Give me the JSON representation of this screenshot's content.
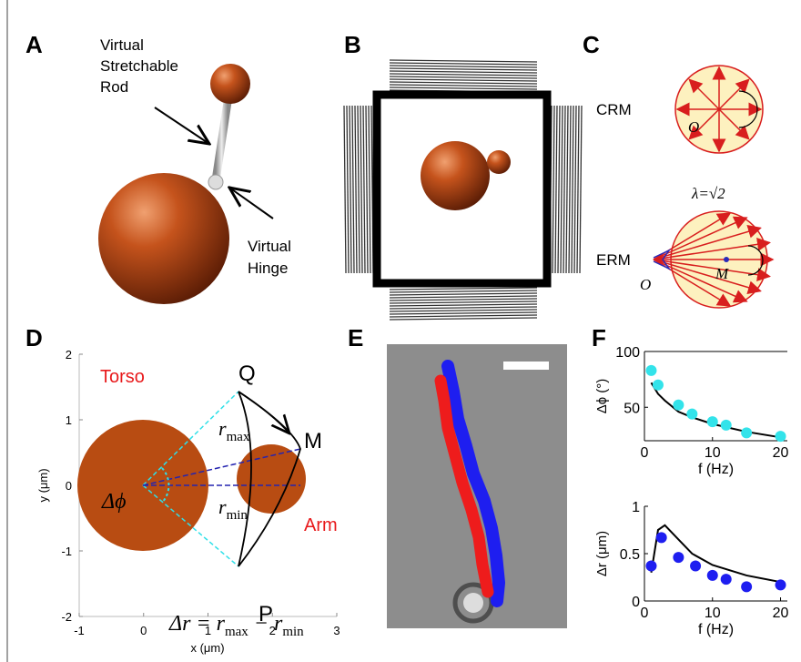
{
  "labels": {
    "a": "A",
    "b": "B",
    "c": "C",
    "d": "D",
    "e": "E",
    "f": "F"
  },
  "panel_a": {
    "rod_label": [
      "Virtual",
      "Stretchable",
      "Rod"
    ],
    "hinge_label": [
      "Virtual",
      "Hinge"
    ]
  },
  "panel_c": {
    "crm_label": "CRM",
    "erm_label": "ERM",
    "crm_origin": "O",
    "erm_origin": "O",
    "erm_center": "M",
    "lambda": "λ=√2"
  },
  "panel_d": {
    "torso": "Torso",
    "arm": "Arm",
    "q": "Q",
    "m": "M",
    "p": "P",
    "rmax": {
      "r": "r",
      "sub": "max"
    },
    "rmin": {
      "r": "r",
      "sub": "min"
    },
    "dphi": "Δϕ",
    "equation": {
      "lhs": "Δr = ",
      "r1": "r",
      "sub1": "max",
      "minus": " − ",
      "r2": "r",
      "sub2": "min"
    },
    "xlabel": "x (μm)",
    "ylabel": "y (μm)",
    "xlim": [
      -1,
      3
    ],
    "xticks": [
      -1,
      0,
      1,
      2,
      3
    ],
    "ylim": [
      -2,
      2
    ],
    "yticks": [
      -2,
      -1,
      0,
      1,
      2
    ]
  },
  "panel_f": {
    "top": {
      "type": "scatter",
      "ylabel": "Δϕ (°)",
      "xlabel": "f (Hz)",
      "xlim": [
        0,
        21
      ],
      "xticks": [
        0,
        10,
        20
      ],
      "ylim": [
        20,
        100
      ],
      "yticks": [
        50,
        100
      ],
      "series": [
        {
          "type": "line",
          "color": "#000000",
          "x": [
            1,
            2,
            3,
            5,
            7,
            10,
            15,
            20
          ],
          "values": [
            72,
            62,
            56,
            46,
            41,
            35,
            28,
            23
          ]
        },
        {
          "type": "scatter",
          "color": "#33e3ea",
          "x": [
            1,
            2,
            5,
            7,
            10,
            12,
            15,
            20
          ],
          "values": [
            83,
            70,
            52,
            44,
            37,
            34,
            27,
            24
          ]
        }
      ]
    },
    "bottom": {
      "type": "scatter",
      "ylabel": "Δr (μm)",
      "xlabel": "f (Hz)",
      "xlim": [
        0,
        21
      ],
      "xticks": [
        0,
        10,
        20
      ],
      "ylim": [
        0,
        1
      ],
      "yticks": [
        0,
        0.5,
        1
      ],
      "series": [
        {
          "type": "line",
          "color": "#000000",
          "x": [
            1,
            2,
            3,
            5,
            7,
            10,
            15,
            20
          ],
          "values": [
            0.3,
            0.75,
            0.8,
            0.65,
            0.5,
            0.38,
            0.27,
            0.2
          ]
        },
        {
          "type": "scatter",
          "color": "#1e1ef0",
          "x": [
            1,
            2.5,
            5,
            7.5,
            10,
            12,
            15,
            20
          ],
          "values": [
            0.37,
            0.67,
            0.46,
            0.37,
            0.27,
            0.23,
            0.15,
            0.17
          ]
        }
      ]
    }
  }
}
